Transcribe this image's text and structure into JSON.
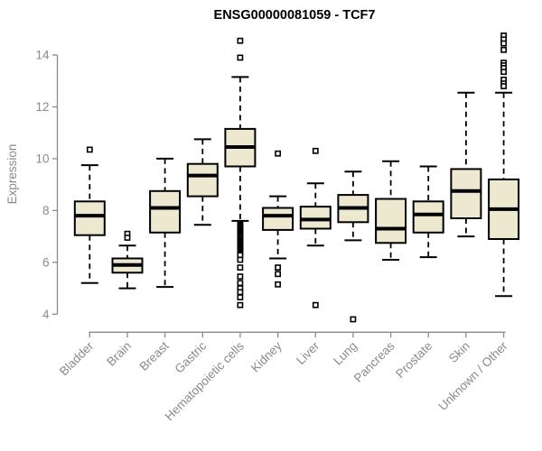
{
  "window": {
    "background": "#ffffff"
  },
  "chart_data": {
    "type": "boxplot",
    "title": "ENSG00000081059 - TCF7",
    "ylabel": "Expression",
    "xlabel": "",
    "ylim": [
      4,
      14.8
    ],
    "yticks": [
      4,
      6,
      8,
      10,
      12,
      14
    ],
    "grid": false,
    "legend": "none",
    "colors": {
      "box_fill": "#EDE8D0",
      "box_stroke": "#000000",
      "median": "#000000",
      "whisker": "#000000",
      "outlier_fill": "#ffffff",
      "axis": "#8A8A8A",
      "tick_text": "#8A8A8A",
      "title_text": "#000000"
    },
    "categories": [
      "Bladder",
      "Brain",
      "Breast",
      "Gastric",
      "Hematopoietic cells",
      "Kidney",
      "Liver",
      "Lung",
      "Pancreas",
      "Prostate",
      "Skin",
      "Unknown / Other"
    ],
    "series": [
      {
        "name": "Bladder",
        "whisker_low": 5.2,
        "q1": 7.05,
        "median": 7.8,
        "q3": 8.35,
        "whisker_high": 9.75,
        "outliers": [
          10.35
        ]
      },
      {
        "name": "Brain",
        "whisker_low": 5.0,
        "q1": 5.6,
        "median": 5.9,
        "q3": 6.15,
        "whisker_high": 6.65,
        "outliers": [
          7.1,
          6.95
        ]
      },
      {
        "name": "Breast",
        "whisker_low": 5.05,
        "q1": 7.15,
        "median": 8.1,
        "q3": 8.75,
        "whisker_high": 10.0,
        "outliers": []
      },
      {
        "name": "Gastric",
        "whisker_low": 7.45,
        "q1": 8.55,
        "median": 9.35,
        "q3": 9.8,
        "whisker_high": 10.75,
        "outliers": []
      },
      {
        "name": "Hematopoietic cells",
        "whisker_low": 7.6,
        "q1": 9.7,
        "median": 10.45,
        "q3": 11.15,
        "whisker_high": 13.15,
        "outliers": [
          14.55,
          13.9,
          7.48,
          7.43,
          7.38,
          7.33,
          7.28,
          7.23,
          7.18,
          7.13,
          7.08,
          7.03,
          6.98,
          6.93,
          6.88,
          6.83,
          6.78,
          6.73,
          6.68,
          6.63,
          6.58,
          6.53,
          6.48,
          6.43,
          6.38,
          6.33,
          6.28,
          6.1,
          5.8,
          5.45,
          5.2,
          5.0,
          4.85,
          4.65,
          4.35
        ]
      },
      {
        "name": "Kidney",
        "whisker_low": 6.15,
        "q1": 7.25,
        "median": 7.8,
        "q3": 8.1,
        "whisker_high": 8.55,
        "outliers": [
          10.2,
          5.8,
          5.55,
          5.15
        ]
      },
      {
        "name": "Liver",
        "whisker_low": 6.65,
        "q1": 7.3,
        "median": 7.65,
        "q3": 8.15,
        "whisker_high": 9.05,
        "outliers": [
          10.3,
          4.35
        ]
      },
      {
        "name": "Lung",
        "whisker_low": 6.85,
        "q1": 7.55,
        "median": 8.1,
        "q3": 8.6,
        "whisker_high": 9.5,
        "outliers": [
          3.8
        ]
      },
      {
        "name": "Pancreas",
        "whisker_low": 6.1,
        "q1": 6.75,
        "median": 7.3,
        "q3": 8.45,
        "whisker_high": 9.9,
        "outliers": []
      },
      {
        "name": "Prostate",
        "whisker_low": 6.2,
        "q1": 7.15,
        "median": 7.85,
        "q3": 8.35,
        "whisker_high": 9.7,
        "outliers": []
      },
      {
        "name": "Skin",
        "whisker_low": 7.0,
        "q1": 7.7,
        "median": 8.75,
        "q3": 9.6,
        "whisker_high": 12.55,
        "outliers": []
      },
      {
        "name": "Unknown / Other",
        "whisker_low": 4.7,
        "q1": 6.9,
        "median": 8.05,
        "q3": 9.2,
        "whisker_high": 12.55,
        "outliers": [
          14.75,
          14.6,
          14.45,
          14.2,
          13.7,
          13.6,
          13.5,
          13.35,
          13.05,
          12.9,
          12.8
        ]
      }
    ]
  }
}
